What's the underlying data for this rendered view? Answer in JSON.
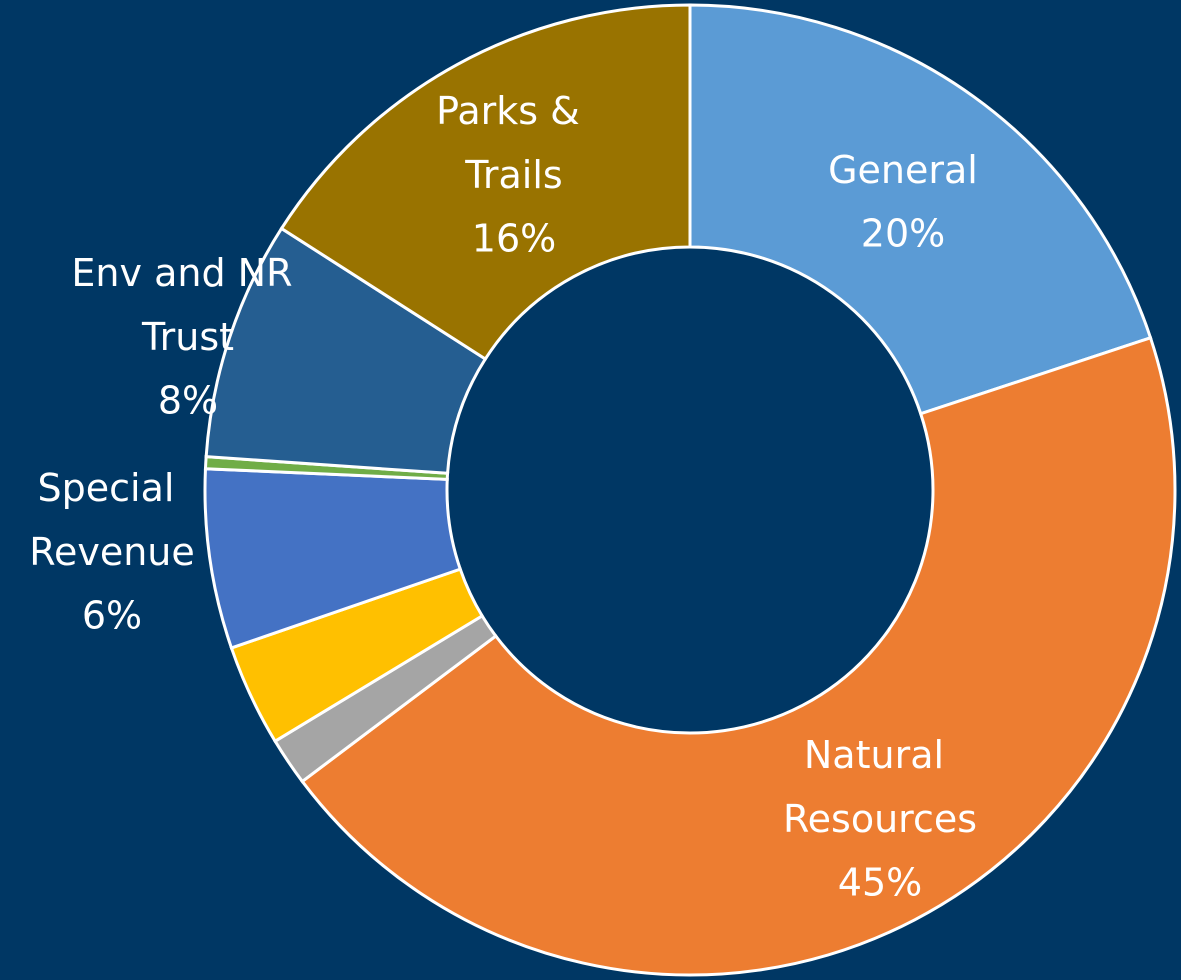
{
  "chart_data": {
    "type": "donut",
    "categories": [
      "General",
      "Natural Resources",
      null,
      null,
      "Special Revenue",
      null,
      "Env and NR Trust",
      "Parks & Trails"
    ],
    "values": [
      20,
      45,
      1.6,
      3.4,
      6,
      0.4,
      8,
      16
    ],
    "value_labels": [
      "20%",
      "45%",
      null,
      null,
      "6%",
      null,
      "8%",
      "16%"
    ],
    "colors": [
      "#5b9bd5",
      "#ed7d31",
      "#a5a5a5",
      "#ffc000",
      "#4472c4",
      "#70ad47",
      "#255e91",
      "#997300"
    ]
  }
}
